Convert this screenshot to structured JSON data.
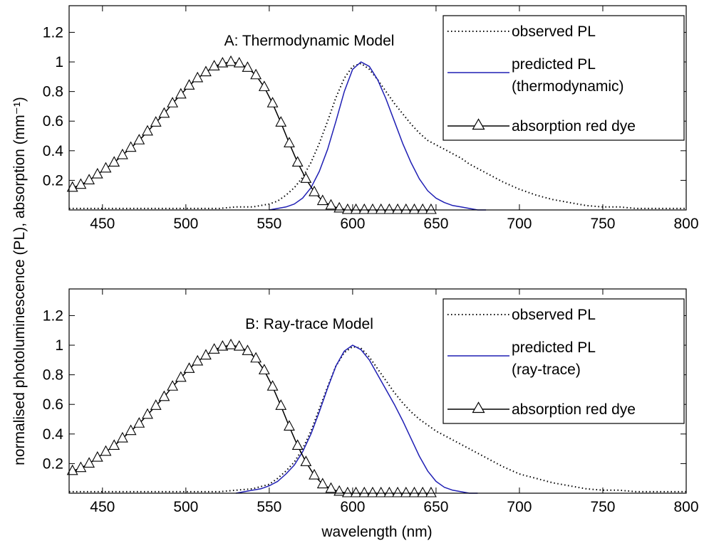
{
  "figure": {
    "xlabel": "wavelength (nm)",
    "ylabel": "normalised photoluminescence (PL),   absorption (mm⁻¹)"
  },
  "colors": {
    "observed": "#000000",
    "predicted": "#1f1fb4",
    "absorption": "#000000"
  },
  "chart_data": [
    {
      "type": "line",
      "title": "A: Thermodynamic Model",
      "xlim": [
        430,
        800
      ],
      "ylim": [
        0,
        1.38
      ],
      "xticks": [
        450,
        500,
        550,
        600,
        650,
        700,
        750,
        800
      ],
      "yticks": [
        0.2,
        0.4,
        0.6,
        0.8,
        1,
        1.2
      ],
      "legend": {
        "position": "top-right",
        "entries": [
          {
            "label": "observed PL",
            "style": "dotted"
          },
          {
            "label": "predicted PL",
            "label2": "(thermodynamic)",
            "style": "solid-blue"
          },
          {
            "label": "absorption red dye",
            "style": "line-triangle"
          }
        ]
      },
      "series": [
        {
          "name": "observed PL",
          "x": [
            430,
            440,
            450,
            460,
            470,
            480,
            490,
            500,
            510,
            520,
            530,
            540,
            550,
            555,
            560,
            565,
            570,
            575,
            580,
            585,
            590,
            595,
            600,
            605,
            610,
            615,
            620,
            625,
            630,
            635,
            640,
            645,
            650,
            655,
            660,
            665,
            670,
            680,
            690,
            700,
            710,
            720,
            730,
            740,
            750,
            760,
            770,
            780,
            790,
            800
          ],
          "y": [
            0.01,
            0.01,
            0.01,
            0.01,
            0.01,
            0.01,
            0.01,
            0.01,
            0.01,
            0.01,
            0.02,
            0.02,
            0.04,
            0.06,
            0.1,
            0.15,
            0.22,
            0.32,
            0.45,
            0.6,
            0.76,
            0.89,
            0.97,
            0.99,
            0.95,
            0.88,
            0.8,
            0.72,
            0.65,
            0.58,
            0.52,
            0.47,
            0.44,
            0.41,
            0.38,
            0.35,
            0.31,
            0.25,
            0.19,
            0.14,
            0.1,
            0.07,
            0.05,
            0.03,
            0.02,
            0.02,
            0.01,
            0.01,
            0.01,
            0.01
          ]
        },
        {
          "name": "predicted PL",
          "x": [
            550,
            555,
            560,
            565,
            570,
            575,
            580,
            585,
            590,
            595,
            600,
            605,
            610,
            615,
            620,
            625,
            630,
            635,
            640,
            645,
            650,
            655,
            660,
            665,
            670,
            675,
            680
          ],
          "y": [
            0.0,
            0.01,
            0.02,
            0.04,
            0.08,
            0.15,
            0.26,
            0.41,
            0.6,
            0.8,
            0.95,
            1.0,
            0.97,
            0.88,
            0.75,
            0.6,
            0.45,
            0.32,
            0.21,
            0.13,
            0.08,
            0.05,
            0.03,
            0.02,
            0.01,
            0.0,
            0.0
          ]
        },
        {
          "name": "absorption red dye",
          "x": [
            432,
            437,
            442,
            447,
            452,
            457,
            462,
            467,
            472,
            477,
            482,
            487,
            492,
            497,
            502,
            507,
            512,
            517,
            522,
            527,
            532,
            537,
            542,
            547,
            552,
            557,
            562,
            567,
            572,
            577,
            582,
            587,
            592,
            597,
            602,
            607,
            612,
            617,
            622,
            627,
            632,
            637,
            642,
            647
          ],
          "y": [
            0.15,
            0.17,
            0.2,
            0.24,
            0.28,
            0.32,
            0.37,
            0.42,
            0.47,
            0.53,
            0.59,
            0.65,
            0.72,
            0.78,
            0.84,
            0.89,
            0.93,
            0.97,
            0.99,
            1.0,
            0.99,
            0.96,
            0.91,
            0.83,
            0.72,
            0.59,
            0.45,
            0.32,
            0.21,
            0.12,
            0.06,
            0.03,
            0.01,
            0.0,
            0.0,
            0.0,
            0.0,
            0.0,
            0.0,
            0.0,
            0.0,
            0.0,
            0.0,
            0.0
          ]
        }
      ]
    },
    {
      "type": "line",
      "title": "B:  Ray-trace Model",
      "xlim": [
        430,
        800
      ],
      "ylim": [
        0,
        1.38
      ],
      "xticks": [
        450,
        500,
        550,
        600,
        650,
        700,
        750,
        800
      ],
      "yticks": [
        0.2,
        0.4,
        0.6,
        0.8,
        1,
        1.2
      ],
      "legend": {
        "position": "top-right",
        "entries": [
          {
            "label": "observed PL",
            "style": "dotted"
          },
          {
            "label": "predicted PL",
            "label2": "(ray-trace)",
            "style": "solid-blue"
          },
          {
            "label": "absorption red dye",
            "style": "line-triangle"
          }
        ]
      },
      "series": [
        {
          "name": "observed PL",
          "x": [
            430,
            440,
            450,
            460,
            470,
            480,
            490,
            500,
            510,
            520,
            530,
            540,
            550,
            555,
            560,
            565,
            570,
            575,
            580,
            585,
            590,
            595,
            600,
            605,
            610,
            615,
            620,
            625,
            630,
            635,
            640,
            645,
            650,
            655,
            660,
            665,
            670,
            680,
            690,
            700,
            710,
            720,
            730,
            740,
            750,
            760,
            770,
            780,
            790,
            800
          ],
          "y": [
            0.01,
            0.01,
            0.01,
            0.01,
            0.01,
            0.01,
            0.01,
            0.01,
            0.01,
            0.01,
            0.02,
            0.03,
            0.06,
            0.1,
            0.15,
            0.21,
            0.3,
            0.42,
            0.57,
            0.72,
            0.86,
            0.95,
            0.99,
            0.98,
            0.92,
            0.84,
            0.76,
            0.68,
            0.61,
            0.55,
            0.5,
            0.46,
            0.42,
            0.39,
            0.36,
            0.33,
            0.3,
            0.24,
            0.18,
            0.13,
            0.1,
            0.07,
            0.05,
            0.03,
            0.02,
            0.02,
            0.01,
            0.01,
            0.01,
            0.01
          ]
        },
        {
          "name": "predicted PL",
          "x": [
            530,
            535,
            540,
            545,
            550,
            555,
            560,
            565,
            570,
            575,
            580,
            585,
            590,
            595,
            600,
            605,
            610,
            615,
            620,
            625,
            630,
            635,
            640,
            645,
            650,
            655,
            660,
            665,
            670,
            675
          ],
          "y": [
            0.0,
            0.01,
            0.02,
            0.03,
            0.05,
            0.08,
            0.13,
            0.19,
            0.28,
            0.4,
            0.55,
            0.71,
            0.86,
            0.96,
            1.0,
            0.97,
            0.9,
            0.8,
            0.7,
            0.6,
            0.49,
            0.37,
            0.25,
            0.15,
            0.08,
            0.04,
            0.02,
            0.01,
            0.0,
            0.0
          ]
        },
        {
          "name": "absorption red dye",
          "x": [
            432,
            437,
            442,
            447,
            452,
            457,
            462,
            467,
            472,
            477,
            482,
            487,
            492,
            497,
            502,
            507,
            512,
            517,
            522,
            527,
            532,
            537,
            542,
            547,
            552,
            557,
            562,
            567,
            572,
            577,
            582,
            587,
            592,
            597,
            602,
            607,
            612,
            617,
            622,
            627,
            632,
            637,
            642,
            647
          ],
          "y": [
            0.15,
            0.17,
            0.2,
            0.24,
            0.28,
            0.32,
            0.37,
            0.42,
            0.47,
            0.53,
            0.59,
            0.65,
            0.72,
            0.78,
            0.84,
            0.89,
            0.93,
            0.97,
            0.99,
            1.0,
            0.99,
            0.96,
            0.91,
            0.83,
            0.72,
            0.59,
            0.45,
            0.32,
            0.21,
            0.12,
            0.06,
            0.03,
            0.01,
            0.0,
            0.0,
            0.0,
            0.0,
            0.0,
            0.0,
            0.0,
            0.0,
            0.0,
            0.0,
            0.0
          ]
        }
      ]
    }
  ]
}
